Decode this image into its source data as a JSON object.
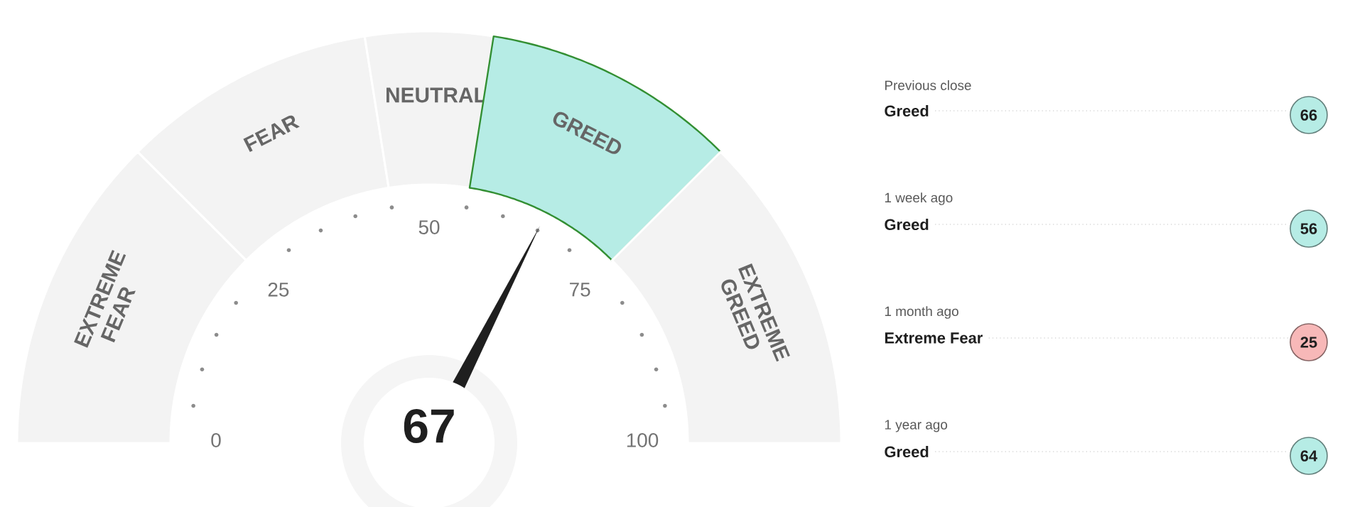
{
  "chart_data": [
    {
      "type": "donut",
      "categories": [
        "EXTREME FEAR",
        "FEAR",
        "NEUTRAL",
        "GREED",
        "EXTREME GREED"
      ],
      "values": [
        25,
        20,
        10,
        20,
        25
      ],
      "colors": [
        "#f3f3f3",
        "#f3f3f3",
        "#f3f3f3",
        "#b6ece5",
        "#f3f3f3"
      ],
      "needle": "GREED",
      "annotations": [
        "67",
        "0",
        "25",
        "50",
        "75",
        "100"
      ]
    },
    {
      "type": "other",
      "categories": [
        "Previous close",
        "1 week ago",
        "1 month ago",
        "1 year ago"
      ],
      "values": [
        66,
        56,
        25,
        64
      ],
      "colors": [
        "#b6ece5",
        "#b6ece5",
        "#f7b8b8",
        "#b6ece5"
      ],
      "annotations": [
        "Greed",
        "Greed",
        "Extreme Fear",
        "Greed"
      ],
      "data_labels": true
    }
  ]
}
